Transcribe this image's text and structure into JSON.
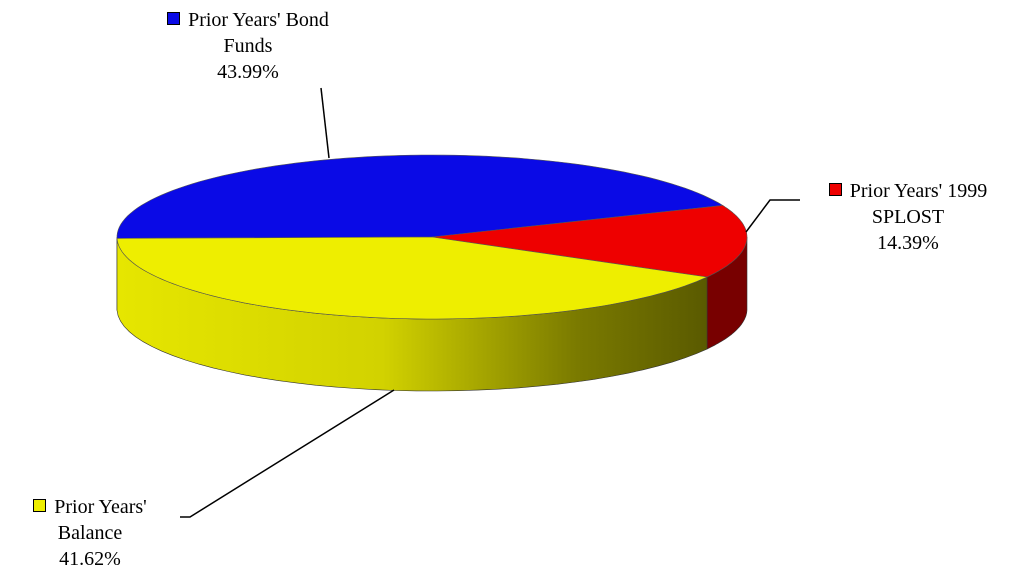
{
  "chart_data": {
    "type": "pie",
    "title": "",
    "slices": [
      {
        "name": "Prior Years' Bond Funds",
        "label_lines": [
          "Prior Years' Bond",
          "Funds"
        ],
        "value": 43.99,
        "value_label": "43.99%",
        "color": "#0a0ae6",
        "side_color": "#000080"
      },
      {
        "name": "Prior Years' 1999 SPLOST",
        "label_lines": [
          "Prior Years' 1999",
          "SPLOST"
        ],
        "value": 14.39,
        "value_label": "14.39%",
        "color": "#ee0000",
        "side_color": "#780000"
      },
      {
        "name": "Prior Years' Balance",
        "label_lines": [
          "Prior Years'",
          "Balance"
        ],
        "value": 41.62,
        "value_label": "41.62%",
        "color": "#eeee00",
        "side_color": "#6a6a00"
      }
    ],
    "style": "3d-exploded-labels",
    "legend": "none"
  }
}
